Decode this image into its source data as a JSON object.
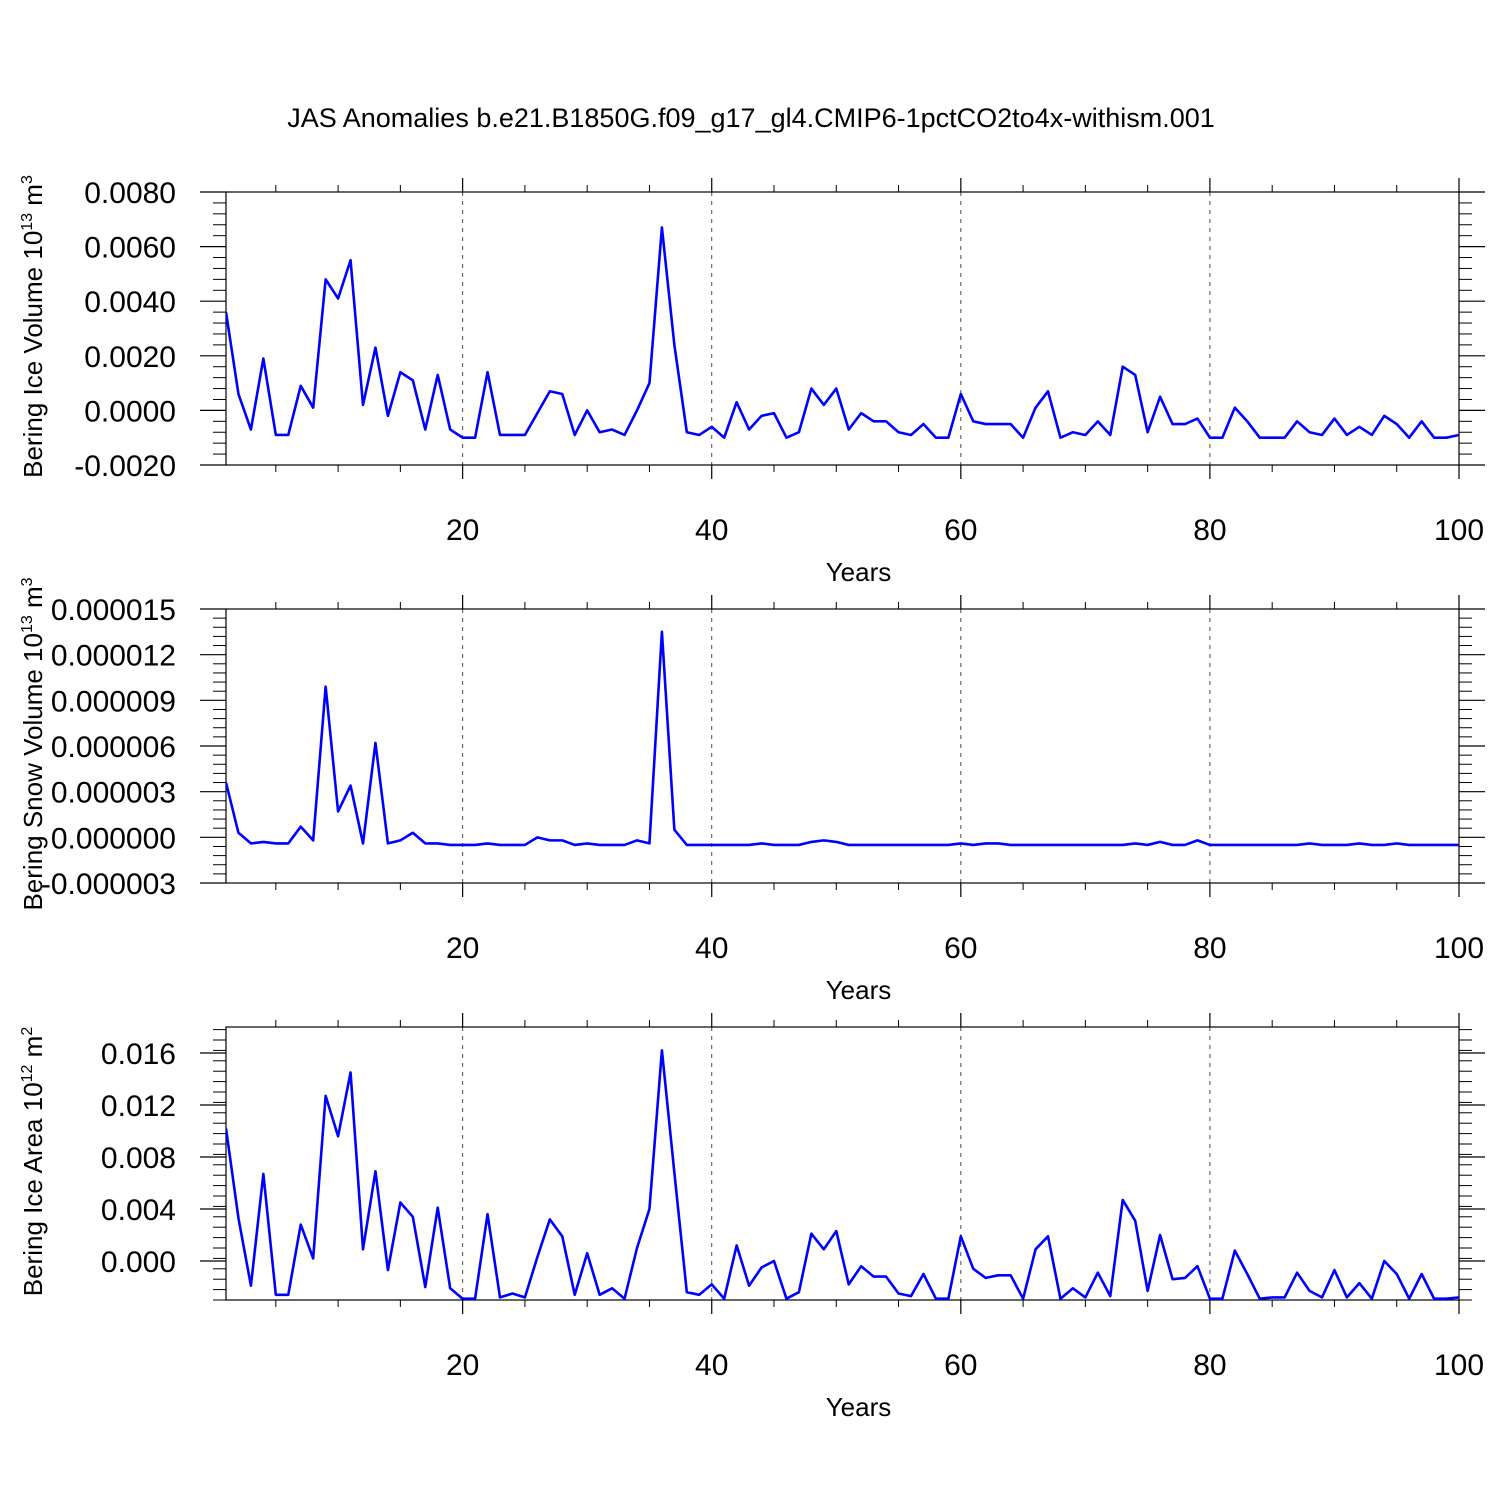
{
  "figure_title": "JAS Anomalies b.e21.B1850G.f09_g17_gl4.CMIP6-1pctCO2to4x-withism.001",
  "colors": {
    "series": "#0000ff",
    "axis": "#000000",
    "grid": "#000000"
  },
  "chart_data": [
    {
      "type": "line",
      "title": "JAS Anomalies b.e21.B1850G.f09_g17_gl4.CMIP6-1pctCO2to4x-withism.001",
      "xlabel": "Years",
      "ylabel_main": "Bering Ice Volume 10",
      "ylabel_sup": "13",
      "ylabel_unit": " m",
      "ylabel_unit_sup": "3",
      "xlim": [
        1,
        100
      ],
      "ylim": [
        -0.002,
        0.008
      ],
      "xticks": [
        20,
        40,
        60,
        80,
        100
      ],
      "xtick_labels": [
        "20",
        "40",
        "60",
        "80",
        "100"
      ],
      "yticks": [
        -0.002,
        0.0,
        0.002,
        0.004,
        0.006,
        0.008
      ],
      "ytick_labels": [
        "-0.0020",
        "0.0000",
        "0.0020",
        "0.0040",
        "0.0060",
        "0.0080"
      ],
      "grid": "vertical dashed at x ticks",
      "x": [
        1,
        2,
        3,
        4,
        5,
        6,
        7,
        8,
        9,
        10,
        11,
        12,
        13,
        14,
        15,
        16,
        17,
        18,
        19,
        20,
        21,
        22,
        23,
        24,
        25,
        26,
        27,
        28,
        29,
        30,
        31,
        32,
        33,
        34,
        35,
        36,
        37,
        38,
        39,
        40,
        41,
        42,
        43,
        44,
        45,
        46,
        47,
        48,
        49,
        50,
        51,
        52,
        53,
        54,
        55,
        56,
        57,
        58,
        59,
        60,
        61,
        62,
        63,
        64,
        65,
        66,
        67,
        68,
        69,
        70,
        71,
        72,
        73,
        74,
        75,
        76,
        77,
        78,
        79,
        80,
        81,
        82,
        83,
        84,
        85,
        86,
        87,
        88,
        89,
        90,
        91,
        92,
        93,
        94,
        95,
        96,
        97,
        98,
        99,
        100
      ],
      "series": [
        {
          "values": [
            0.0036,
            0.0006,
            -0.0007,
            0.0019,
            -0.0009,
            -0.0009,
            0.0009,
            0.0001,
            0.0048,
            0.0041,
            0.0055,
            0.0002,
            0.0023,
            -0.0002,
            0.0014,
            0.0011,
            -0.0007,
            0.0013,
            -0.0007,
            -0.001,
            -0.001,
            0.0014,
            -0.0009,
            -0.0009,
            -0.0009,
            -0.0001,
            0.0007,
            0.0006,
            -0.0009,
            0.0,
            -0.0008,
            -0.0007,
            -0.0009,
            0.0,
            0.001,
            0.0067,
            0.0024,
            -0.0008,
            -0.0009,
            -0.0006,
            -0.001,
            0.0003,
            -0.0007,
            -0.0002,
            -0.0001,
            -0.001,
            -0.0008,
            0.0008,
            0.0002,
            0.0008,
            -0.0007,
            -0.0001,
            -0.0004,
            -0.0004,
            -0.0008,
            -0.0009,
            -0.0005,
            -0.001,
            -0.001,
            0.0006,
            -0.0004,
            -0.0005,
            -0.0005,
            -0.0005,
            -0.001,
            0.0001,
            0.0007,
            -0.001,
            -0.0008,
            -0.0009,
            -0.0004,
            -0.0009,
            0.0016,
            0.0013,
            -0.0008,
            0.0005,
            -0.0005,
            -0.0005,
            -0.0003,
            -0.001,
            -0.001,
            0.0001,
            -0.0004,
            -0.001,
            -0.001,
            -0.001,
            -0.0004,
            -0.0008,
            -0.0009,
            -0.0003,
            -0.0009,
            -0.0006,
            -0.0009,
            -0.0002,
            -0.0005,
            -0.001,
            -0.0004,
            -0.001,
            -0.001,
            -0.0009
          ]
        }
      ]
    },
    {
      "type": "line",
      "xlabel": "Years",
      "ylabel_main": "Bering Snow Volume 10",
      "ylabel_sup": "13",
      "ylabel_unit": " m",
      "ylabel_unit_sup": "3",
      "xlim": [
        1,
        100
      ],
      "ylim": [
        -3e-06,
        1.5e-05
      ],
      "xticks": [
        20,
        40,
        60,
        80,
        100
      ],
      "xtick_labels": [
        "20",
        "40",
        "60",
        "80",
        "100"
      ],
      "yticks": [
        -3e-06,
        0.0,
        3e-06,
        6e-06,
        9e-06,
        1.2e-05,
        1.5e-05
      ],
      "ytick_labels": [
        "-0.000003",
        "0.000000",
        "0.000003",
        "0.000006",
        "0.000009",
        "0.000012",
        "0.000015"
      ],
      "grid": "vertical dashed at x ticks",
      "x": [
        1,
        2,
        3,
        4,
        5,
        6,
        7,
        8,
        9,
        10,
        11,
        12,
        13,
        14,
        15,
        16,
        17,
        18,
        19,
        20,
        21,
        22,
        23,
        24,
        25,
        26,
        27,
        28,
        29,
        30,
        31,
        32,
        33,
        34,
        35,
        36,
        37,
        38,
        39,
        40,
        41,
        42,
        43,
        44,
        45,
        46,
        47,
        48,
        49,
        50,
        51,
        52,
        53,
        54,
        55,
        56,
        57,
        58,
        59,
        60,
        61,
        62,
        63,
        64,
        65,
        66,
        67,
        68,
        69,
        70,
        71,
        72,
        73,
        74,
        75,
        76,
        77,
        78,
        79,
        80,
        81,
        82,
        83,
        84,
        85,
        86,
        87,
        88,
        89,
        90,
        91,
        92,
        93,
        94,
        95,
        96,
        97,
        98,
        99,
        100
      ],
      "series": [
        {
          "values": [
            3.6e-06,
            3e-07,
            -4e-07,
            -3e-07,
            -4e-07,
            -4e-07,
            7e-07,
            -2e-07,
            9.9e-06,
            1.7e-06,
            3.4e-06,
            -4e-07,
            6.2e-06,
            -4e-07,
            -2e-07,
            3e-07,
            -4e-07,
            -4e-07,
            -5e-07,
            -5e-07,
            -5e-07,
            -4e-07,
            -5e-07,
            -5e-07,
            -5e-07,
            0.0,
            -2e-07,
            -2e-07,
            -5e-07,
            -4e-07,
            -5e-07,
            -5e-07,
            -5e-07,
            -2e-07,
            -4e-07,
            1.35e-05,
            5e-07,
            -5e-07,
            -5e-07,
            -5e-07,
            -5e-07,
            -5e-07,
            -5e-07,
            -4e-07,
            -5e-07,
            -5e-07,
            -5e-07,
            -3e-07,
            -2e-07,
            -3e-07,
            -5e-07,
            -5e-07,
            -5e-07,
            -5e-07,
            -5e-07,
            -5e-07,
            -5e-07,
            -5e-07,
            -5e-07,
            -4e-07,
            -5e-07,
            -4e-07,
            -4e-07,
            -5e-07,
            -5e-07,
            -5e-07,
            -5e-07,
            -5e-07,
            -5e-07,
            -5e-07,
            -5e-07,
            -5e-07,
            -5e-07,
            -4e-07,
            -5e-07,
            -3e-07,
            -5e-07,
            -5e-07,
            -2e-07,
            -5e-07,
            -5e-07,
            -5e-07,
            -5e-07,
            -5e-07,
            -5e-07,
            -5e-07,
            -5e-07,
            -4e-07,
            -5e-07,
            -5e-07,
            -5e-07,
            -4e-07,
            -5e-07,
            -5e-07,
            -4e-07,
            -5e-07,
            -5e-07,
            -5e-07,
            -5e-07,
            -5e-07
          ]
        }
      ]
    },
    {
      "type": "line",
      "xlabel": "Years",
      "ylabel_main": "Bering Ice Area 10",
      "ylabel_sup": "12",
      "ylabel_unit": " m",
      "ylabel_unit_sup": "2",
      "xlim": [
        1,
        100
      ],
      "ylim": [
        -0.003,
        0.018
      ],
      "xticks": [
        20,
        40,
        60,
        80,
        100
      ],
      "xtick_labels": [
        "20",
        "40",
        "60",
        "80",
        "100"
      ],
      "yticks": [
        0.0,
        0.004,
        0.008,
        0.012,
        0.016
      ],
      "ytick_labels": [
        "0.000",
        "0.004",
        "0.008",
        "0.012",
        "0.016"
      ],
      "grid": "vertical dashed at x ticks",
      "x": [
        1,
        2,
        3,
        4,
        5,
        6,
        7,
        8,
        9,
        10,
        11,
        12,
        13,
        14,
        15,
        16,
        17,
        18,
        19,
        20,
        21,
        22,
        23,
        24,
        25,
        26,
        27,
        28,
        29,
        30,
        31,
        32,
        33,
        34,
        35,
        36,
        37,
        38,
        39,
        40,
        41,
        42,
        43,
        44,
        45,
        46,
        47,
        48,
        49,
        50,
        51,
        52,
        53,
        54,
        55,
        56,
        57,
        58,
        59,
        60,
        61,
        62,
        63,
        64,
        65,
        66,
        67,
        68,
        69,
        70,
        71,
        72,
        73,
        74,
        75,
        76,
        77,
        78,
        79,
        80,
        81,
        82,
        83,
        84,
        85,
        86,
        87,
        88,
        89,
        90,
        91,
        92,
        93,
        94,
        95,
        96,
        97,
        98,
        99,
        100
      ],
      "series": [
        {
          "values": [
            0.0102,
            0.0033,
            -0.0019,
            0.0067,
            -0.0026,
            -0.0026,
            0.0028,
            0.0002,
            0.0127,
            0.0096,
            0.0145,
            0.0009,
            0.0069,
            -0.0007,
            0.0045,
            0.0034,
            -0.002,
            0.0041,
            -0.0021,
            -0.0029,
            -0.0029,
            0.0036,
            -0.0028,
            -0.0025,
            -0.0028,
            0.0003,
            0.0032,
            0.0019,
            -0.0026,
            0.0006,
            -0.0026,
            -0.0021,
            -0.0029,
            0.001,
            0.004,
            0.0162,
            0.0068,
            -0.0024,
            -0.0026,
            -0.0018,
            -0.0029,
            0.0012,
            -0.0019,
            -0.0005,
            0.0,
            -0.0029,
            -0.0024,
            0.0021,
            0.0009,
            0.0023,
            -0.0018,
            -0.0004,
            -0.0012,
            -0.0012,
            -0.0025,
            -0.0027,
            -0.001,
            -0.0029,
            -0.0029,
            0.0019,
            -0.0006,
            -0.0013,
            -0.0011,
            -0.0011,
            -0.0029,
            0.0009,
            0.0019,
            -0.0029,
            -0.0021,
            -0.0028,
            -0.0009,
            -0.0027,
            0.0047,
            0.0031,
            -0.0023,
            0.002,
            -0.0014,
            -0.0013,
            -0.0004,
            -0.0029,
            -0.0029,
            0.0008,
            -0.001,
            -0.0029,
            -0.0028,
            -0.0028,
            -0.0009,
            -0.0023,
            -0.0028,
            -0.0007,
            -0.0028,
            -0.0017,
            -0.0029,
            0.0,
            -0.001,
            -0.0029,
            -0.001,
            -0.0029,
            -0.0029,
            -0.0028
          ]
        }
      ]
    }
  ]
}
